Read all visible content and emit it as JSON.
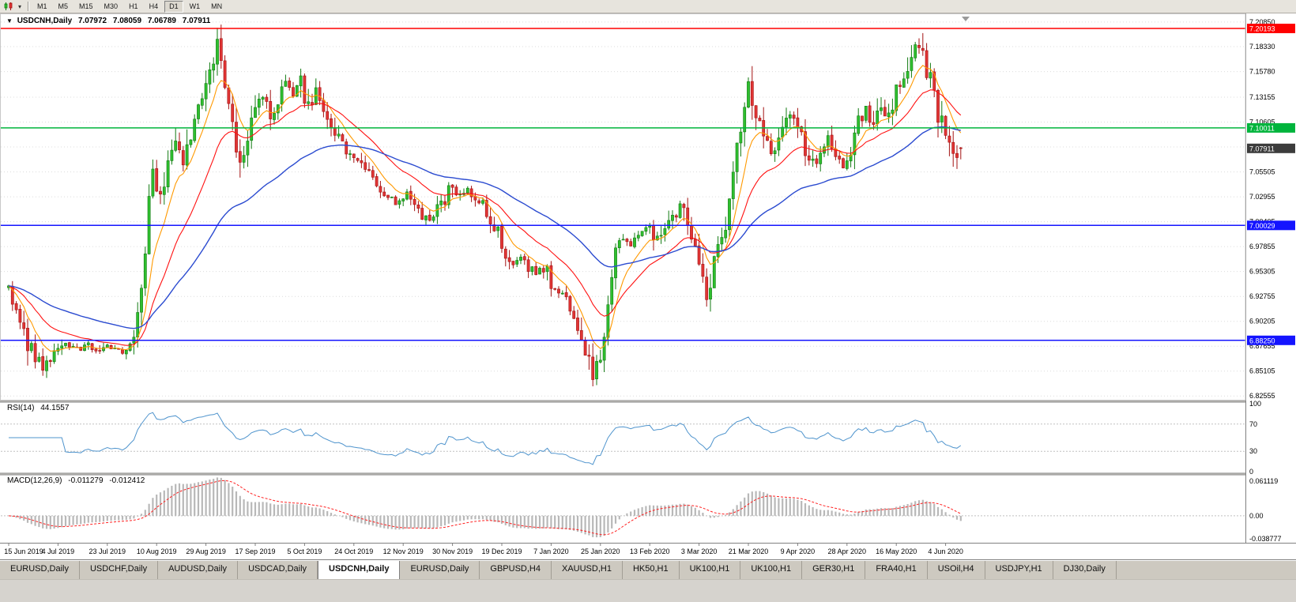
{
  "toolbar": {
    "caret_glyph": "▾",
    "timeframes": [
      "M1",
      "M5",
      "M15",
      "M30",
      "H1",
      "H4",
      "D1",
      "W1",
      "MN"
    ],
    "active_timeframe": "D1"
  },
  "chart": {
    "symbol_arrow": "▼",
    "title_symbol": "USDCNH,Daily",
    "ohlc": {
      "open": "7.07972",
      "high": "7.08059",
      "low": "7.06789",
      "close": "7.07911"
    },
    "price_scale": [
      "7.20850",
      "7.18330",
      "7.15780",
      "7.13155",
      "7.10605",
      "7.08055",
      "7.05505",
      "7.02955",
      "7.00405",
      "6.97855",
      "6.95305",
      "6.92755",
      "6.90205",
      "6.87655",
      "6.85105",
      "6.82555"
    ],
    "hlines": [
      {
        "label": "7.20193",
        "price": 7.20193,
        "color": "#ff0000"
      },
      {
        "label": "7.10011",
        "price": 7.10011,
        "color": "#00b43c"
      },
      {
        "label": "7.00029",
        "price": 7.00029,
        "color": "#1414ff"
      },
      {
        "label": "6.88250",
        "price": 6.8825,
        "color": "#1414ff"
      }
    ],
    "current_price": {
      "label": "7.07911",
      "price": 7.07911,
      "color": "#3c3c3c"
    }
  },
  "indicators": {
    "rsi": {
      "name": "RSI(14)",
      "value": "44.1557",
      "scale": [
        "100",
        "70",
        "30",
        "0"
      ],
      "levels": [
        70,
        30
      ],
      "color": "#4f94cd"
    },
    "macd": {
      "name": "MACD(12,26,9)",
      "value1": "-0.011279",
      "value2": "-0.012412",
      "scale_top": "0.061119",
      "scale_zero": "0.00",
      "scale_bottom": "-0.038777",
      "histogram_color": "#b8b8b8",
      "signal_color": "#ff2020"
    }
  },
  "tabs": [
    {
      "label": "EURUSD,Daily"
    },
    {
      "label": "USDCHF,Daily"
    },
    {
      "label": "AUDUSD,Daily"
    },
    {
      "label": "USDCAD,Daily"
    },
    {
      "label": "USDCNH,Daily",
      "active": true
    },
    {
      "label": "EURUSD,Daily"
    },
    {
      "label": "GBPUSD,H4"
    },
    {
      "label": "XAUUSD,H1"
    },
    {
      "label": "HK50,H1"
    },
    {
      "label": "UK100,H1"
    },
    {
      "label": "UK100,H1"
    },
    {
      "label": "GER30,H1"
    },
    {
      "label": "FRA40,H1"
    },
    {
      "label": "USOil,H4"
    },
    {
      "label": "USDJPY,H1"
    },
    {
      "label": "DJ30,Daily"
    }
  ],
  "chart_data": {
    "type": "candlestick",
    "symbol": "USDCNH",
    "timeframe": "Daily",
    "bars": 252,
    "x_labels": [
      "15 Jun 2019",
      "4 Jul 2019",
      "23 Jul 2019",
      "10 Aug 2019",
      "29 Aug 2019",
      "17 Sep 2019",
      "5 Oct 2019",
      "24 Oct 2019",
      "12 Nov 2019",
      "30 Nov 2019",
      "19 Dec 2019",
      "7 Jan 2020",
      "25 Jan 2020",
      "13 Feb 2020",
      "3 Mar 2020",
      "21 Mar 2020",
      "9 Apr 2020",
      "28 Apr 2020",
      "16 May 2020",
      "4 Jun 2020"
    ],
    "bars_per_label": 13,
    "price_range": {
      "top": 7.2165,
      "bottom": 6.8217
    },
    "last_bar": {
      "open": 7.07972,
      "high": 7.08059,
      "low": 7.06789,
      "close": 7.07911
    },
    "up_color": "#2fbf2f",
    "up_stroke": "#117a11",
    "down_color": "#e03535",
    "down_stroke": "#a31212",
    "moving_averages": [
      {
        "period": 8,
        "color": "#ff9900",
        "width": 1.1
      },
      {
        "period": 21,
        "color": "#ff1010",
        "width": 1.1
      },
      {
        "period": 55,
        "color": "#2b4bd0",
        "width": 1.4
      }
    ],
    "macd_scale": {
      "max": 0.0611,
      "min": -0.0388
    },
    "anchors": [
      [
        0,
        6.935
      ],
      [
        2,
        6.915
      ],
      [
        4,
        6.895
      ],
      [
        6,
        6.872
      ],
      [
        9,
        6.853
      ],
      [
        12,
        6.868
      ],
      [
        15,
        6.88
      ],
      [
        18,
        6.872
      ],
      [
        21,
        6.879
      ],
      [
        24,
        6.871
      ],
      [
        27,
        6.877
      ],
      [
        30,
        6.873
      ],
      [
        33,
        6.882
      ],
      [
        35,
        6.925
      ],
      [
        36,
        6.975
      ],
      [
        37,
        7.02
      ],
      [
        38,
        7.048
      ],
      [
        40,
        7.035
      ],
      [
        42,
        7.06
      ],
      [
        44,
        7.08
      ],
      [
        46,
        7.058
      ],
      [
        48,
        7.085
      ],
      [
        50,
        7.115
      ],
      [
        52,
        7.145
      ],
      [
        54,
        7.175
      ],
      [
        55,
        7.192
      ],
      [
        56,
        7.178
      ],
      [
        58,
        7.125
      ],
      [
        60,
        7.078
      ],
      [
        61,
        7.058
      ],
      [
        63,
        7.085
      ],
      [
        65,
        7.118
      ],
      [
        67,
        7.13
      ],
      [
        69,
        7.112
      ],
      [
        71,
        7.128
      ],
      [
        73,
        7.142
      ],
      [
        75,
        7.135
      ],
      [
        77,
        7.148
      ],
      [
        79,
        7.122
      ],
      [
        81,
        7.134
      ],
      [
        83,
        7.118
      ],
      [
        85,
        7.102
      ],
      [
        87,
        7.088
      ],
      [
        89,
        7.078
      ],
      [
        91,
        7.07
      ],
      [
        93,
        7.062
      ],
      [
        95,
        7.05
      ],
      [
        97,
        7.04
      ],
      [
        99,
        7.032
      ],
      [
        101,
        7.026
      ],
      [
        103,
        7.022
      ],
      [
        105,
        7.03
      ],
      [
        107,
        7.024
      ],
      [
        109,
        7.012
      ],
      [
        111,
        7.006
      ],
      [
        113,
        7.018
      ],
      [
        115,
        7.028
      ],
      [
        117,
        7.045
      ],
      [
        119,
        7.032
      ],
      [
        121,
        7.036
      ],
      [
        123,
        7.028
      ],
      [
        125,
        7.02
      ],
      [
        127,
        7.008
      ],
      [
        129,
        6.99
      ],
      [
        131,
        6.972
      ],
      [
        133,
        6.962
      ],
      [
        135,
        6.966
      ],
      [
        137,
        6.958
      ],
      [
        139,
        6.952
      ],
      [
        141,
        6.958
      ],
      [
        143,
        6.94
      ],
      [
        145,
        6.932
      ],
      [
        147,
        6.922
      ],
      [
        149,
        6.905
      ],
      [
        151,
        6.882
      ],
      [
        153,
        6.862
      ],
      [
        154,
        6.85
      ],
      [
        156,
        6.868
      ],
      [
        157,
        6.895
      ],
      [
        158,
        6.918
      ],
      [
        159,
        6.948
      ],
      [
        160,
        6.972
      ],
      [
        161,
        6.988
      ],
      [
        163,
        6.978
      ],
      [
        165,
        6.988
      ],
      [
        167,
        6.995
      ],
      [
        169,
        6.998
      ],
      [
        171,
        6.982
      ],
      [
        173,
        6.995
      ],
      [
        175,
        7.008
      ],
      [
        177,
        7.022
      ],
      [
        179,
        7.002
      ],
      [
        181,
        6.968
      ],
      [
        183,
        6.938
      ],
      [
        184,
        6.93
      ],
      [
        186,
        6.958
      ],
      [
        188,
        6.988
      ],
      [
        190,
        7.022
      ],
      [
        192,
        7.075
      ],
      [
        194,
        7.128
      ],
      [
        195,
        7.158
      ],
      [
        196,
        7.135
      ],
      [
        198,
        7.105
      ],
      [
        200,
        7.082
      ],
      [
        202,
        7.068
      ],
      [
        204,
        7.095
      ],
      [
        206,
        7.112
      ],
      [
        208,
        7.1
      ],
      [
        210,
        7.075
      ],
      [
        212,
        7.06
      ],
      [
        214,
        7.076
      ],
      [
        216,
        7.09
      ],
      [
        218,
        7.072
      ],
      [
        220,
        7.064
      ],
      [
        222,
        7.082
      ],
      [
        224,
        7.108
      ],
      [
        226,
        7.118
      ],
      [
        228,
        7.102
      ],
      [
        230,
        7.128
      ],
      [
        232,
        7.112
      ],
      [
        234,
        7.138
      ],
      [
        236,
        7.15
      ],
      [
        238,
        7.172
      ],
      [
        240,
        7.193
      ],
      [
        241,
        7.18
      ],
      [
        242,
        7.162
      ],
      [
        244,
        7.132
      ],
      [
        246,
        7.102
      ],
      [
        248,
        7.082
      ],
      [
        249,
        7.062
      ],
      [
        250,
        7.075
      ],
      [
        251,
        7.079
      ]
    ]
  }
}
